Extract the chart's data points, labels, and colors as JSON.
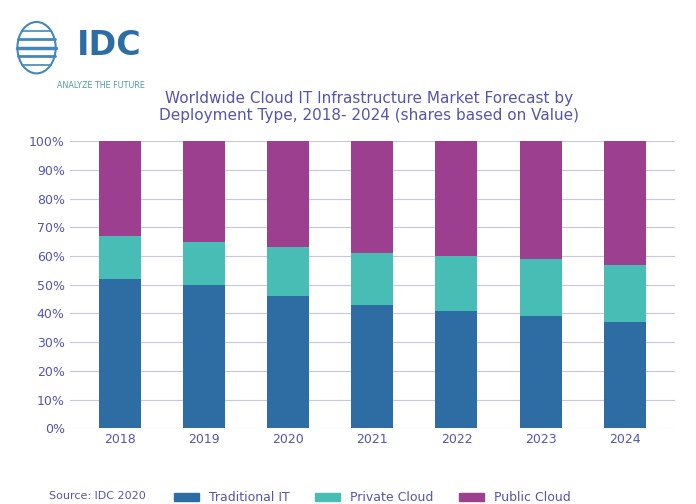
{
  "title": "Worldwide Cloud IT Infrastructure Market Forecast by\nDeployment Type, 2018- 2024 (shares based on Value)",
  "years": [
    "2018",
    "2019",
    "2020",
    "2021",
    "2022",
    "2023",
    "2024"
  ],
  "traditional_it": [
    52,
    50,
    46,
    43,
    41,
    39,
    37
  ],
  "private_cloud": [
    15,
    15,
    17,
    18,
    19,
    20,
    20
  ],
  "public_cloud": [
    33,
    35,
    37,
    39,
    40,
    41,
    43
  ],
  "colors": {
    "traditional_it": "#2E6DA4",
    "private_cloud": "#47BDB5",
    "public_cloud": "#9B3F8E"
  },
  "legend_labels": [
    "Traditional IT",
    "Private Cloud",
    "Public Cloud"
  ],
  "source": "Source: IDC 2020",
  "background_color": "#FFFFFF",
  "grid_color": "#C8C8DC",
  "title_color": "#5555AA",
  "tick_color": "#5555AA",
  "bar_width": 0.5,
  "ylim": [
    0,
    100
  ],
  "yticks": [
    0,
    10,
    20,
    30,
    40,
    50,
    60,
    70,
    80,
    90,
    100
  ],
  "title_fontsize": 11,
  "tick_fontsize": 9,
  "legend_fontsize": 9,
  "source_fontsize": 8,
  "idc_text_color": "#2E6DA4",
  "idc_sub_color": "#5599AA",
  "globe_color": "#4488BB"
}
